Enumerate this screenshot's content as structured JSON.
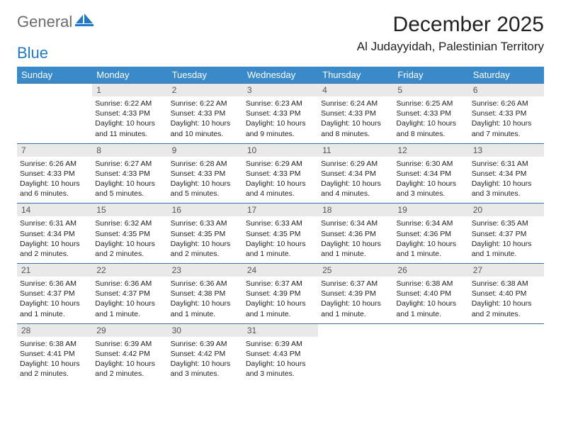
{
  "logo": {
    "general": "General",
    "blue": "Blue"
  },
  "title": "December 2025",
  "location": "Al Judayyidah, Palestinian Territory",
  "colors": {
    "header_bg": "#3a8ac9",
    "header_text": "#ffffff",
    "daynum_bg": "#e9e9e9",
    "daynum_text": "#555555",
    "rule": "#3a6fa8",
    "text": "#222222",
    "logo_gray": "#6b6b6b",
    "logo_blue": "#1f79c6"
  },
  "days_of_week": [
    "Sunday",
    "Monday",
    "Tuesday",
    "Wednesday",
    "Thursday",
    "Friday",
    "Saturday"
  ],
  "weeks": [
    {
      "nums": [
        "",
        "1",
        "2",
        "3",
        "4",
        "5",
        "6"
      ],
      "cells": [
        [],
        [
          "Sunrise: 6:22 AM",
          "Sunset: 4:33 PM",
          "Daylight: 10 hours",
          "and 11 minutes."
        ],
        [
          "Sunrise: 6:22 AM",
          "Sunset: 4:33 PM",
          "Daylight: 10 hours",
          "and 10 minutes."
        ],
        [
          "Sunrise: 6:23 AM",
          "Sunset: 4:33 PM",
          "Daylight: 10 hours",
          "and 9 minutes."
        ],
        [
          "Sunrise: 6:24 AM",
          "Sunset: 4:33 PM",
          "Daylight: 10 hours",
          "and 8 minutes."
        ],
        [
          "Sunrise: 6:25 AM",
          "Sunset: 4:33 PM",
          "Daylight: 10 hours",
          "and 8 minutes."
        ],
        [
          "Sunrise: 6:26 AM",
          "Sunset: 4:33 PM",
          "Daylight: 10 hours",
          "and 7 minutes."
        ]
      ]
    },
    {
      "nums": [
        "7",
        "8",
        "9",
        "10",
        "11",
        "12",
        "13"
      ],
      "cells": [
        [
          "Sunrise: 6:26 AM",
          "Sunset: 4:33 PM",
          "Daylight: 10 hours",
          "and 6 minutes."
        ],
        [
          "Sunrise: 6:27 AM",
          "Sunset: 4:33 PM",
          "Daylight: 10 hours",
          "and 5 minutes."
        ],
        [
          "Sunrise: 6:28 AM",
          "Sunset: 4:33 PM",
          "Daylight: 10 hours",
          "and 5 minutes."
        ],
        [
          "Sunrise: 6:29 AM",
          "Sunset: 4:33 PM",
          "Daylight: 10 hours",
          "and 4 minutes."
        ],
        [
          "Sunrise: 6:29 AM",
          "Sunset: 4:34 PM",
          "Daylight: 10 hours",
          "and 4 minutes."
        ],
        [
          "Sunrise: 6:30 AM",
          "Sunset: 4:34 PM",
          "Daylight: 10 hours",
          "and 3 minutes."
        ],
        [
          "Sunrise: 6:31 AM",
          "Sunset: 4:34 PM",
          "Daylight: 10 hours",
          "and 3 minutes."
        ]
      ]
    },
    {
      "nums": [
        "14",
        "15",
        "16",
        "17",
        "18",
        "19",
        "20"
      ],
      "cells": [
        [
          "Sunrise: 6:31 AM",
          "Sunset: 4:34 PM",
          "Daylight: 10 hours",
          "and 2 minutes."
        ],
        [
          "Sunrise: 6:32 AM",
          "Sunset: 4:35 PM",
          "Daylight: 10 hours",
          "and 2 minutes."
        ],
        [
          "Sunrise: 6:33 AM",
          "Sunset: 4:35 PM",
          "Daylight: 10 hours",
          "and 2 minutes."
        ],
        [
          "Sunrise: 6:33 AM",
          "Sunset: 4:35 PM",
          "Daylight: 10 hours",
          "and 1 minute."
        ],
        [
          "Sunrise: 6:34 AM",
          "Sunset: 4:36 PM",
          "Daylight: 10 hours",
          "and 1 minute."
        ],
        [
          "Sunrise: 6:34 AM",
          "Sunset: 4:36 PM",
          "Daylight: 10 hours",
          "and 1 minute."
        ],
        [
          "Sunrise: 6:35 AM",
          "Sunset: 4:37 PM",
          "Daylight: 10 hours",
          "and 1 minute."
        ]
      ]
    },
    {
      "nums": [
        "21",
        "22",
        "23",
        "24",
        "25",
        "26",
        "27"
      ],
      "cells": [
        [
          "Sunrise: 6:36 AM",
          "Sunset: 4:37 PM",
          "Daylight: 10 hours",
          "and 1 minute."
        ],
        [
          "Sunrise: 6:36 AM",
          "Sunset: 4:37 PM",
          "Daylight: 10 hours",
          "and 1 minute."
        ],
        [
          "Sunrise: 6:36 AM",
          "Sunset: 4:38 PM",
          "Daylight: 10 hours",
          "and 1 minute."
        ],
        [
          "Sunrise: 6:37 AM",
          "Sunset: 4:39 PM",
          "Daylight: 10 hours",
          "and 1 minute."
        ],
        [
          "Sunrise: 6:37 AM",
          "Sunset: 4:39 PM",
          "Daylight: 10 hours",
          "and 1 minute."
        ],
        [
          "Sunrise: 6:38 AM",
          "Sunset: 4:40 PM",
          "Daylight: 10 hours",
          "and 1 minute."
        ],
        [
          "Sunrise: 6:38 AM",
          "Sunset: 4:40 PM",
          "Daylight: 10 hours",
          "and 2 minutes."
        ]
      ]
    },
    {
      "nums": [
        "28",
        "29",
        "30",
        "31",
        "",
        "",
        ""
      ],
      "cells": [
        [
          "Sunrise: 6:38 AM",
          "Sunset: 4:41 PM",
          "Daylight: 10 hours",
          "and 2 minutes."
        ],
        [
          "Sunrise: 6:39 AM",
          "Sunset: 4:42 PM",
          "Daylight: 10 hours",
          "and 2 minutes."
        ],
        [
          "Sunrise: 6:39 AM",
          "Sunset: 4:42 PM",
          "Daylight: 10 hours",
          "and 3 minutes."
        ],
        [
          "Sunrise: 6:39 AM",
          "Sunset: 4:43 PM",
          "Daylight: 10 hours",
          "and 3 minutes."
        ],
        [],
        [],
        []
      ]
    }
  ]
}
